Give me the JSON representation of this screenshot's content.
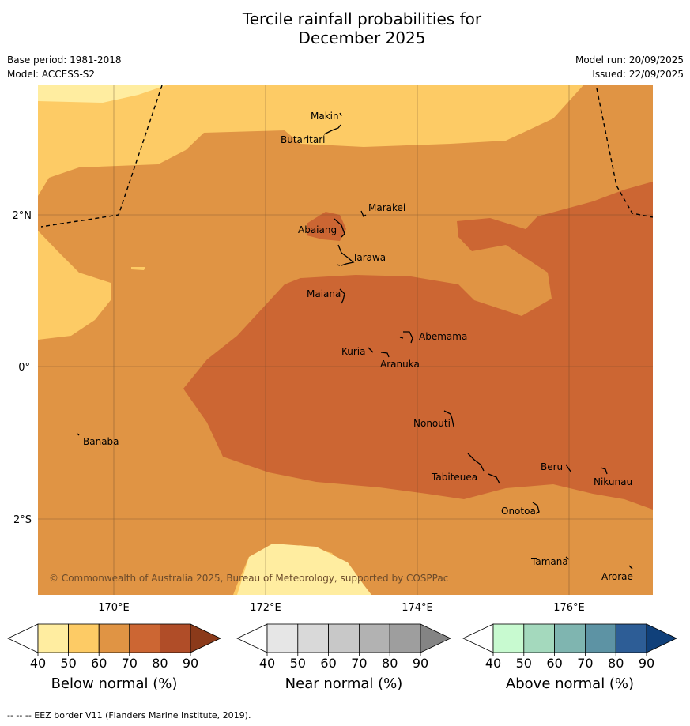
{
  "title_line1": "Tercile rainfall probabilities for",
  "title_line2": "December 2025",
  "base_period": "Base period: 1981-2018",
  "model": "Model: ACCESS-S2",
  "model_run": "Model run: 20/09/2025",
  "issued": "Issued: 22/09/2025",
  "copyright": "© Commonwealth of Australia 2025, Bureau of Meteorology, supported by COSPPac",
  "lat_labels": [
    "2°N",
    "0°",
    "2°S"
  ],
  "lon_labels": [
    "170°E",
    "172°E",
    "174°E",
    "176°E"
  ],
  "places": [
    "Makin",
    "Butaritari",
    "Marakei",
    "Abaiang",
    "Tarawa",
    "Maiana",
    "Abemama",
    "Kuria",
    "Aranuka",
    "Nonouti",
    "Banaba",
    "Beru",
    "Nikunau",
    "Tabiteuea",
    "Onotoa",
    "Tamana",
    "Arorae"
  ],
  "colorbars": [
    {
      "label": "Below normal (%)",
      "ticks": [
        "40",
        "50",
        "60",
        "70",
        "80",
        "90"
      ],
      "colors": [
        "#ffffff",
        "#ffeda0",
        "#fdcb65",
        "#e09444",
        "#cc6633",
        "#b04d28",
        "#8b3a1a"
      ]
    },
    {
      "label": "Near normal (%)",
      "ticks": [
        "40",
        "50",
        "60",
        "70",
        "80",
        "90"
      ],
      "colors": [
        "#ffffff",
        "#e6e6e6",
        "#d9d9d9",
        "#c8c8c8",
        "#b2b2b2",
        "#9e9e9e",
        "#848484"
      ]
    },
    {
      "label": "Above normal (%)",
      "ticks": [
        "40",
        "50",
        "60",
        "70",
        "80",
        "90"
      ],
      "colors": [
        "#ffffff",
        "#c8fad0",
        "#a4d9bd",
        "#7fb5b0",
        "#5d93a4",
        "#2d5d96",
        "#10407a"
      ]
    }
  ],
  "footer": "--  --  -- EEZ border V11 (Flanders Marine Institute, 2019)."
}
